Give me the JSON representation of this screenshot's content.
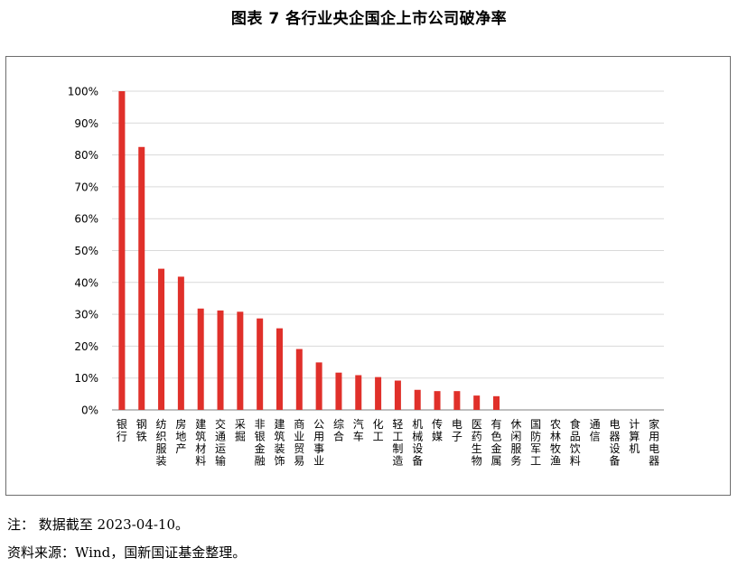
{
  "title": "图表 7  各行业央企国企上市公司破净率",
  "notes": {
    "note": "注：  数据截至 2023-04-10。",
    "source": "资料来源：Wind，国新国证基金整理。"
  },
  "colors": {
    "bar": "#e0302a",
    "grid": "#d9d9d9",
    "axis": "#7f7f7f"
  },
  "chart_data": {
    "type": "bar",
    "ylim": [
      0,
      100
    ],
    "yticks": [
      0,
      10,
      20,
      30,
      40,
      50,
      60,
      70,
      80,
      90,
      100
    ],
    "ytick_labels": [
      "0%",
      "10%",
      "20%",
      "30%",
      "40%",
      "50%",
      "60%",
      "70%",
      "80%",
      "90%",
      "100%"
    ],
    "grid": true,
    "categories": [
      "银行",
      "钢铁",
      "纺织服装",
      "房地产",
      "建筑材料",
      "交通运输",
      "采掘",
      "非银金融",
      "建筑装饰",
      "商业贸易",
      "公用事业",
      "综合",
      "汽车",
      "化工",
      "轻工制造",
      "机械设备",
      "传媒",
      "电子",
      "医药生物",
      "有色金属",
      "休闲服务",
      "国防军工",
      "农林牧渔",
      "食品饮料",
      "通信",
      "电器设备",
      "计算机",
      "家用电器"
    ],
    "values": [
      100,
      82.5,
      44.3,
      41.8,
      31.8,
      31.2,
      30.8,
      28.7,
      25.6,
      19.1,
      14.9,
      11.7,
      10.9,
      10.3,
      9.2,
      6.3,
      5.9,
      5.9,
      4.5,
      4.3,
      0,
      0,
      0,
      0,
      0,
      0,
      0,
      0
    ]
  }
}
